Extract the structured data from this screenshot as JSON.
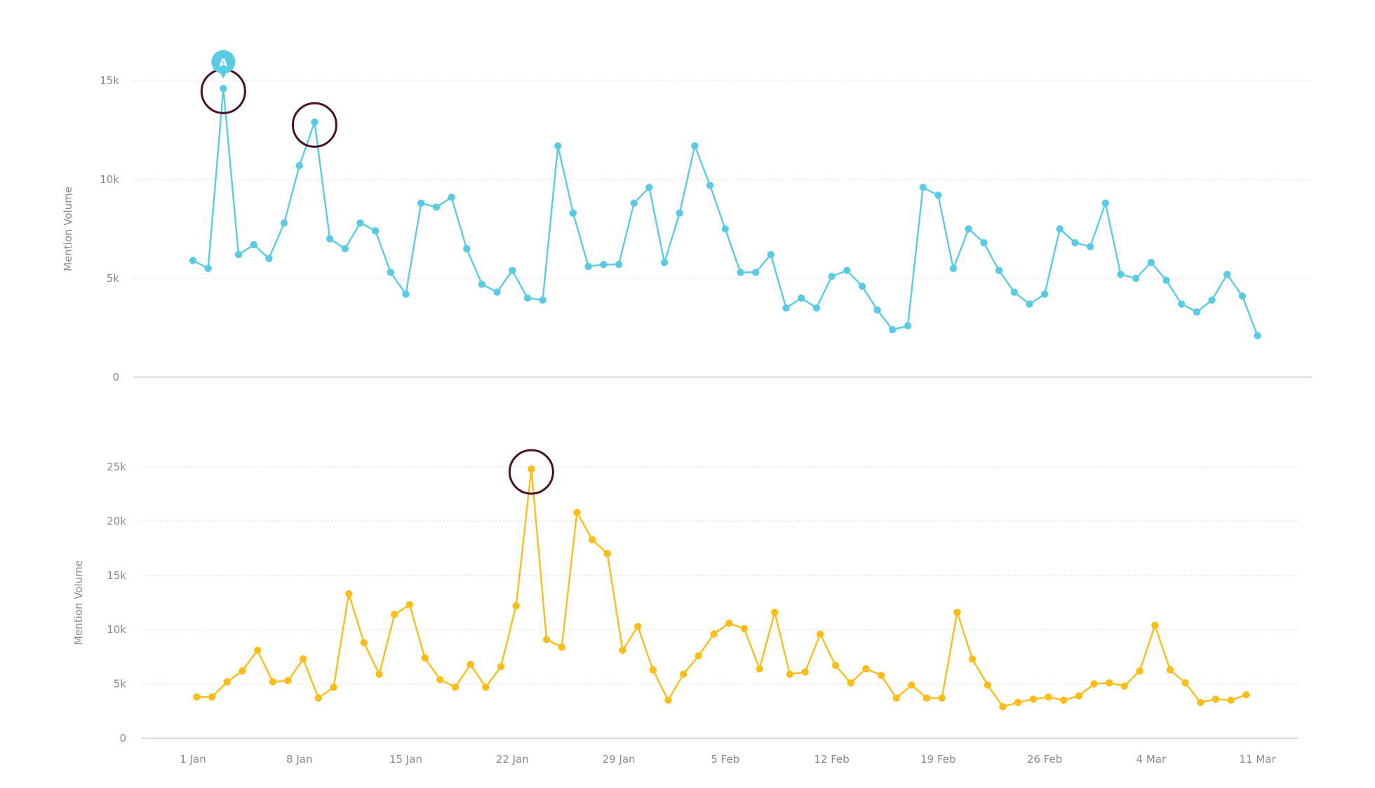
{
  "chart_data": [
    {
      "type": "line",
      "ylabel": "Mention Volume",
      "yticks": [
        "0",
        "5k",
        "10k",
        "15k"
      ],
      "ylim": [
        0,
        15000
      ],
      "color": "#5bcbe3",
      "x_start": "1 Jan",
      "series": [
        {
          "values": [
            5900,
            5500,
            14600,
            6200,
            6700,
            6000,
            7800,
            10700,
            12900,
            7000,
            6500,
            7800,
            7400,
            5300,
            4200,
            8800,
            8600,
            9100,
            6500,
            4700,
            4300,
            5400,
            4000,
            3900,
            11700,
            8300,
            5600,
            5700,
            5700,
            8800,
            9600,
            5800,
            8300,
            11700,
            9700,
            7500,
            5300,
            5300,
            6200,
            3500,
            4000,
            3500,
            5100,
            5400,
            4600,
            3400,
            2400,
            2600,
            9600,
            9200,
            5500,
            7500,
            6800,
            5400,
            4300,
            3700,
            4200,
            7500,
            6800,
            6600,
            8800,
            5200,
            5000,
            5800,
            4900,
            3700,
            3300,
            3900,
            5200,
            4100,
            2100
          ]
        }
      ],
      "annotations": [
        {
          "label": "A",
          "date": "3 Jan",
          "value": 14600
        }
      ],
      "highlights": [
        {
          "date": "3 Jan",
          "value": 14600
        },
        {
          "date": "9 Jan",
          "value": 12900
        }
      ],
      "grid": true
    },
    {
      "type": "line",
      "ylabel": "Mention Volume",
      "yticks": [
        "0",
        "5k",
        "10k",
        "15k",
        "20k",
        "25k"
      ],
      "ylim": [
        0,
        25000
      ],
      "color": "#fbbd19",
      "x_start": "1 Jan",
      "xticks": [
        "1 Jan",
        "8 Jan",
        "15 Jan",
        "22 Jan",
        "29 Jan",
        "5 Feb",
        "12 Feb",
        "19 Feb",
        "26 Feb",
        "4 Mar",
        "11 Mar"
      ],
      "series": [
        {
          "values": [
            3800,
            3800,
            5200,
            6200,
            8100,
            5200,
            5300,
            7300,
            3700,
            4700,
            13300,
            8800,
            5900,
            11400,
            12300,
            7400,
            5400,
            4700,
            6800,
            4700,
            6600,
            12200,
            24800,
            9100,
            8400,
            20800,
            18300,
            17000,
            8100,
            10300,
            6300,
            3500,
            5900,
            7600,
            9600,
            10600,
            10100,
            6400,
            11600,
            5900,
            6100,
            9600,
            6700,
            5100,
            6400,
            5800,
            3700,
            4900,
            3700,
            3700,
            11600,
            7300,
            4900,
            2900,
            3300,
            3600,
            3800,
            3500,
            3900,
            5000,
            5100,
            4800,
            6200,
            10400,
            6300,
            5100,
            3300,
            3600,
            3500,
            4000
          ]
        }
      ],
      "highlights": [
        {
          "date": "23 Jan",
          "value": 24800
        }
      ],
      "grid": true
    }
  ]
}
